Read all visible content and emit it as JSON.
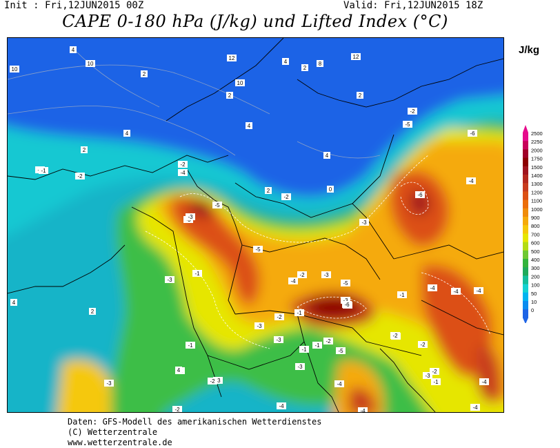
{
  "header": {
    "init": "Init : Fri,12JUN2015 00Z",
    "valid": "Valid: Fri,12JUN2015 18Z",
    "title": "CAPE 0-180 hPa (J/kg) und Lifted Index (°C)"
  },
  "colorbar": {
    "unit": "J/kg",
    "levels": [
      "2500",
      "2250",
      "2000",
      "1750",
      "1500",
      "1400",
      "1300",
      "1200",
      "1100",
      "1000",
      "900",
      "800",
      "700",
      "600",
      "500",
      "400",
      "300",
      "200",
      "100",
      "50",
      "10",
      "0"
    ],
    "colors": [
      "#e60a8c",
      "#c8005a",
      "#a00028",
      "#8c0000",
      "#a0141e",
      "#b4281e",
      "#c83c1e",
      "#dc5014",
      "#ec6e0a",
      "#f08c0a",
      "#f5aa0a",
      "#f5c80a",
      "#e6e600",
      "#b4dc14",
      "#6ec832",
      "#32b43c",
      "#1eaa5a",
      "#14be9b",
      "#14d2d2",
      "#00b4f0",
      "#0a8cf0",
      "#1e64e6"
    ]
  },
  "map_labels": {
    "contour_values": [
      "4",
      "10",
      "10",
      "12",
      "2",
      "10",
      "4",
      "8",
      "2",
      "12",
      "2",
      "2",
      "2",
      "4",
      "4",
      "4",
      "2",
      "0",
      "-2",
      "-1",
      "-2",
      "-1",
      "-2",
      "-4",
      "-5",
      "-3",
      "-6",
      "-5",
      "-3",
      "-3",
      "-1",
      "-2",
      "-3",
      "-5",
      "-3",
      "-4",
      "-2",
      "-1",
      "-2",
      "-3",
      "-6",
      "-4",
      "-1",
      "-2",
      "-1",
      "-1",
      "-4",
      "-3",
      "-5",
      "-6",
      "-4",
      "-4",
      "-4",
      "-3",
      "-4",
      "-4",
      "-3",
      "-2",
      "-1",
      "-3",
      "-2",
      "-3",
      "-3",
      "-2",
      "-4",
      "-4",
      "-2",
      "-2",
      "-5",
      "-2",
      "-1",
      "-2",
      "-1",
      "2",
      "4",
      "4"
    ]
  },
  "footer": {
    "line1": "Daten: GFS-Modell des amerikanischen Wetterdienstes",
    "line2": "(C) Wetterzentrale",
    "line3": "www.wetterzentrale.de"
  }
}
